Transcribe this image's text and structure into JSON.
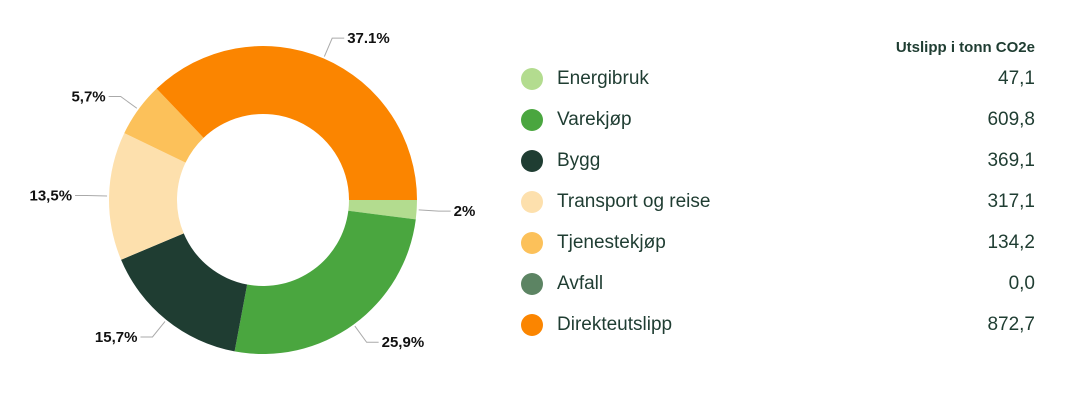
{
  "chart_data": {
    "type": "pie",
    "donut": true,
    "column_header": "Utslipp i tonn CO2e",
    "categories": [
      "Energibruk",
      "Varekjøp",
      "Bygg",
      "Transport og reise",
      "Tjenestekjøp",
      "Avfall",
      "Direkteutslipp"
    ],
    "values": [
      47.1,
      609.8,
      369.1,
      317.1,
      134.2,
      0.0,
      872.7
    ],
    "value_labels": [
      "47,1",
      "609,8",
      "369,1",
      "317,1",
      "134,2",
      "0,0",
      "872,7"
    ],
    "percent_labels": [
      "2%",
      "25,9%",
      "15,7%",
      "13,5%",
      "5,7%",
      "",
      "37.1%"
    ],
    "colors": [
      "#b3dc8f",
      "#4aa63f",
      "#1f3d32",
      "#fde0ad",
      "#fcc15a",
      "#5c8463",
      "#fb8500"
    ],
    "legend": "right"
  }
}
